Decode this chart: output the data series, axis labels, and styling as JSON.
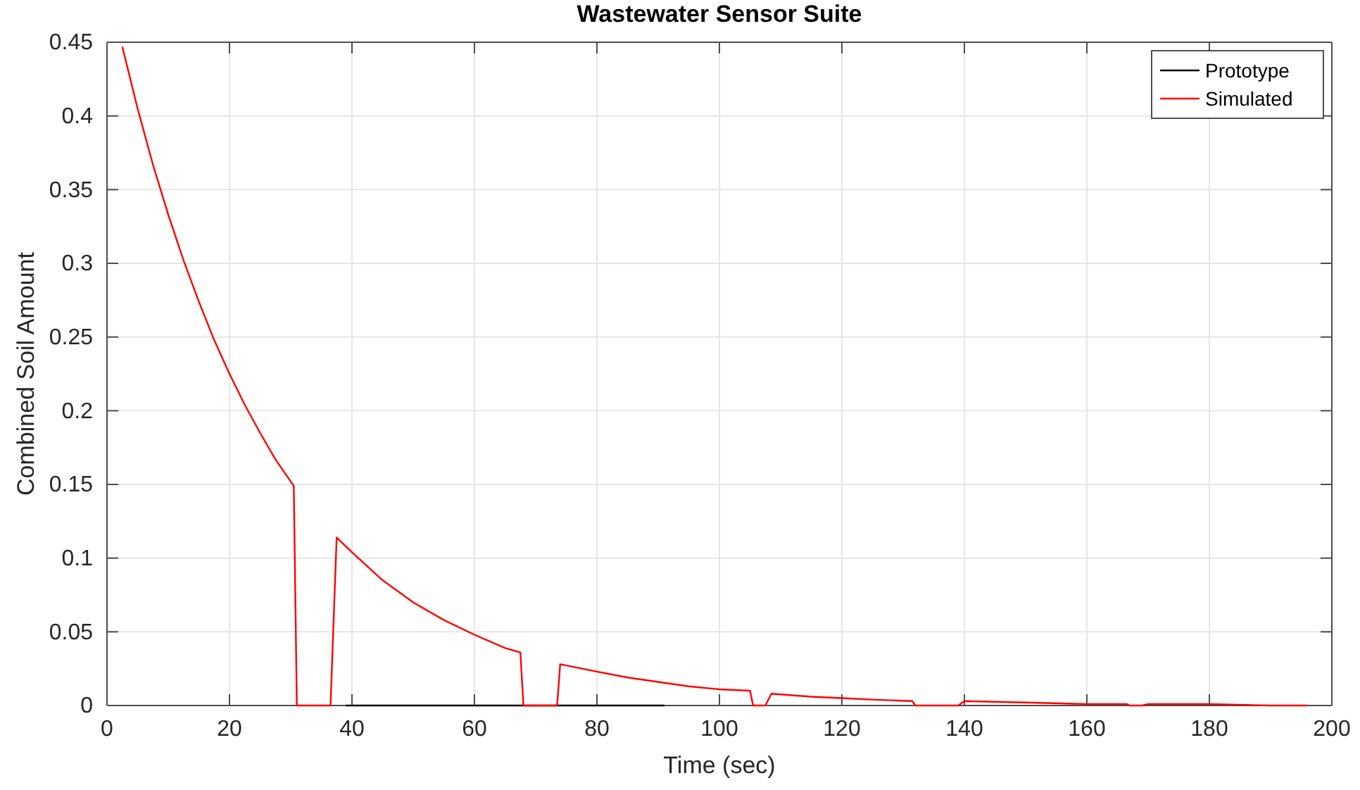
{
  "chart_data": {
    "type": "line",
    "title": "Wastewater Sensor Suite",
    "xlabel": "Time (sec)",
    "ylabel": "Combined Soil Amount",
    "xlim": [
      0,
      200
    ],
    "xticks": [
      0,
      20,
      40,
      60,
      80,
      100,
      120,
      140,
      160,
      180,
      200
    ],
    "ylim": [
      0,
      0.45
    ],
    "yticks": [
      0,
      0.05,
      0.1,
      0.15,
      0.2,
      0.25,
      0.3,
      0.35,
      0.4,
      0.45
    ],
    "grid": true,
    "legend": "top right",
    "series": [
      {
        "name": "Prototype",
        "color": "#000000",
        "x": [
          39,
          50,
          60,
          70,
          80,
          91
        ],
        "values": [
          0,
          0,
          0,
          0,
          0,
          0
        ]
      },
      {
        "name": "Simulated",
        "color": "#ff0000",
        "x": [
          2.5,
          5,
          7.5,
          10,
          12.5,
          15,
          17.5,
          20,
          22.5,
          25,
          27.5,
          30.5,
          31,
          36.5,
          37.5,
          40,
          45,
          50,
          55,
          60,
          65,
          67.5,
          68,
          73.5,
          74,
          80,
          85,
          90,
          95,
          100,
          105,
          105.5,
          107.5,
          108.5,
          115,
          120,
          125,
          131.5,
          132,
          139,
          140,
          150,
          160,
          166.5,
          167,
          169,
          170,
          180,
          190,
          195.5,
          196
        ],
        "values": [
          0.447,
          0.405,
          0.367,
          0.333,
          0.302,
          0.274,
          0.248,
          0.225,
          0.204,
          0.185,
          0.167,
          0.149,
          0,
          0,
          0.114,
          0.104,
          0.085,
          0.07,
          0.058,
          0.048,
          0.039,
          0.036,
          0,
          0,
          0.028,
          0.023,
          0.019,
          0.016,
          0.013,
          0.011,
          0.01,
          0,
          0,
          0.008,
          0.006,
          0.005,
          0.004,
          0.003,
          0,
          0,
          0.003,
          0.002,
          0.001,
          0.001,
          0,
          0,
          0.001,
          0.001,
          0,
          0,
          0
        ]
      }
    ]
  }
}
